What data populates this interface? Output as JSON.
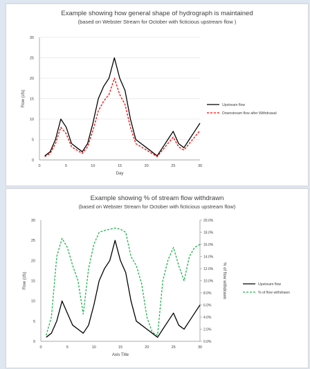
{
  "chart_data": [
    {
      "type": "line",
      "title": "Example showing how general shape of hydrograph is maintained",
      "subtitle": "(based on Webster Stream for October with ficticious upstream flow )",
      "xlabel": "Day",
      "ylabel": "Flow (cfs)",
      "xlim": [
        0,
        30
      ],
      "ylim": [
        0,
        30
      ],
      "xticks": [
        "0",
        "5",
        "10",
        "15",
        "20",
        "25",
        "30"
      ],
      "yticks": [
        "0",
        "5",
        "10",
        "15",
        "20",
        "25",
        "30"
      ],
      "grid": true,
      "legend": "right",
      "x": [
        1,
        2,
        3,
        4,
        5,
        6,
        7,
        8,
        9,
        10,
        11,
        12,
        13,
        14,
        15,
        16,
        17,
        18,
        19,
        20,
        21,
        22,
        23,
        24,
        25,
        26,
        27,
        28,
        29,
        30
      ],
      "series": [
        {
          "name": "Upstream flow",
          "color": "#000000",
          "style": "solid",
          "values": [
            1,
            2,
            5,
            10,
            8,
            4,
            3,
            2,
            4,
            9,
            15,
            18,
            20,
            25,
            20,
            17,
            10,
            5,
            4,
            3,
            2,
            1,
            3,
            5,
            7,
            4,
            3,
            5,
            7,
            9
          ]
        },
        {
          "name": "Downstream flow after Withdrawal",
          "color": "#ff0000",
          "style": "dashed",
          "values": [
            0.8,
            1.6,
            4,
            8,
            6.4,
            3.2,
            2.4,
            1.6,
            3.2,
            7.2,
            12,
            14.4,
            16,
            20,
            16,
            13.6,
            8,
            4,
            3.2,
            2.4,
            1.6,
            0.8,
            2.4,
            4,
            5.6,
            3.2,
            2.4,
            4,
            5.6,
            7.2
          ]
        }
      ]
    },
    {
      "type": "line",
      "title": "Example showing % of stream flow withdrawn",
      "subtitle": "(based on Webster Stream for October with ficticious upstream flow)",
      "xlabel": "Axis Title",
      "ylabel": "Flow (cfs)",
      "y2label": "% of flow withdrawn",
      "xlim": [
        0,
        30
      ],
      "ylim": [
        0,
        30
      ],
      "y2lim": [
        0,
        0.2
      ],
      "xticks": [
        "0",
        "5",
        "10",
        "15",
        "20",
        "25",
        "30"
      ],
      "yticks": [
        "0",
        "5",
        "10",
        "15",
        "20",
        "25",
        "30"
      ],
      "y2ticks": [
        "0.0%",
        "2.0%",
        "4.0%",
        "6.0%",
        "8.0%",
        "10.0%",
        "12.0%",
        "14.0%",
        "16.0%",
        "18.0%",
        "20.0%"
      ],
      "grid": false,
      "legend": "right",
      "x": [
        1,
        2,
        3,
        4,
        5,
        6,
        7,
        8,
        9,
        10,
        11,
        12,
        13,
        14,
        15,
        16,
        17,
        18,
        19,
        20,
        21,
        22,
        23,
        24,
        25,
        26,
        27,
        28,
        29,
        30
      ],
      "series": [
        {
          "name": "Upstream flow",
          "color": "#000000",
          "style": "solid",
          "axis": "left",
          "values": [
            1,
            2,
            5,
            10,
            7,
            4,
            3,
            2,
            4,
            9,
            15,
            18,
            20,
            25,
            20,
            17,
            10,
            5,
            4,
            3,
            2,
            1,
            3,
            5,
            7,
            4,
            3,
            5,
            7,
            9
          ]
        },
        {
          "name": "% of flow withdrawn",
          "color": "#1db34a",
          "style": "dashed",
          "axis": "right",
          "values": [
            0.01,
            0.04,
            0.14,
            0.17,
            0.155,
            0.125,
            0.1,
            0.045,
            0.12,
            0.16,
            0.18,
            0.183,
            0.185,
            0.187,
            0.185,
            0.18,
            0.14,
            0.125,
            0.095,
            0.04,
            0.015,
            0.01,
            0.1,
            0.135,
            0.155,
            0.125,
            0.1,
            0.14,
            0.155,
            0.16
          ]
        }
      ]
    }
  ]
}
